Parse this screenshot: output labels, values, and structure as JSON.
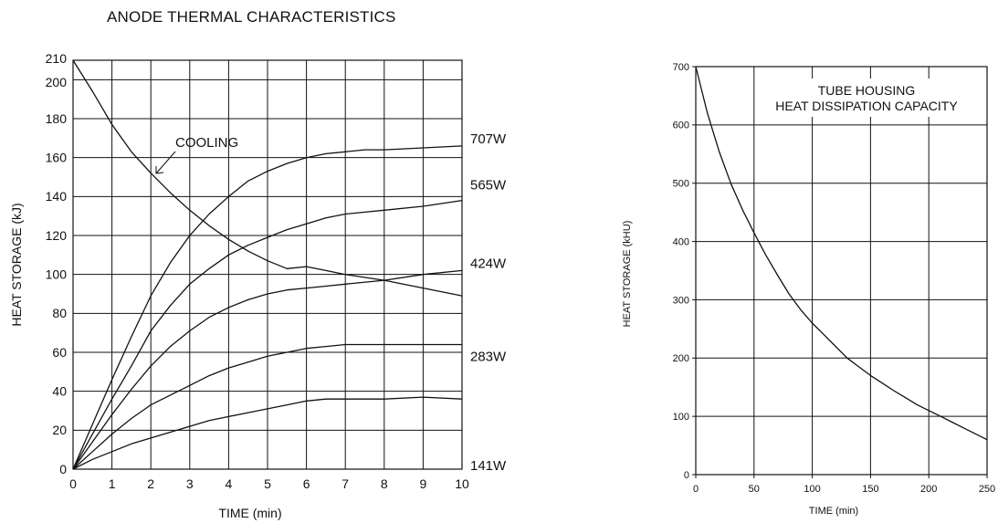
{
  "chart_data": [
    {
      "type": "line",
      "title": "ANODE THERMAL CHARACTERISTICS",
      "xlabel": "TIME (min)",
      "ylabel": "HEAT STORAGE (kJ)",
      "xlim": [
        0,
        10
      ],
      "ylim": [
        0,
        210
      ],
      "xticks": [
        "0",
        "1",
        "2",
        "3",
        "4",
        "5",
        "6",
        "7",
        "8",
        "9",
        "10"
      ],
      "yticks": [
        "0",
        "20",
        "40",
        "60",
        "80",
        "100",
        "120",
        "140",
        "160",
        "180",
        "200",
        "210"
      ],
      "grid": true,
      "annotation": "COOLING",
      "series": [
        {
          "name": "COOLING",
          "x": [
            0,
            0.5,
            1,
            1.5,
            2,
            2.5,
            3,
            3.5,
            4,
            4.5,
            5,
            5.5,
            6,
            6.5,
            7,
            8,
            9,
            10
          ],
          "y": [
            210,
            194,
            177,
            163,
            152,
            142,
            133,
            125,
            118,
            112,
            107,
            103,
            104,
            102,
            100,
            97,
            93,
            89
          ]
        },
        {
          "name": "707W",
          "x": [
            0,
            0.5,
            1,
            1.5,
            2,
            2.5,
            3,
            3.5,
            4,
            4.5,
            5,
            5.5,
            6,
            6.5,
            7,
            7.5,
            8,
            9,
            10
          ],
          "y": [
            0,
            23,
            46,
            68,
            89,
            106,
            120,
            131,
            140,
            148,
            153,
            157,
            160,
            162,
            163,
            164,
            164,
            165,
            166
          ]
        },
        {
          "name": "565W",
          "x": [
            0,
            0.5,
            1,
            1.5,
            2,
            2.5,
            3,
            3.5,
            4,
            4.5,
            5,
            5.5,
            6,
            6.5,
            7,
            7.5,
            8,
            9,
            10
          ],
          "y": [
            0,
            18,
            36,
            53,
            71,
            84,
            95,
            103,
            110,
            115,
            119,
            123,
            126,
            129,
            131,
            132,
            133,
            135,
            138
          ]
        },
        {
          "name": "424W",
          "x": [
            0,
            0.5,
            1,
            1.5,
            2,
            2.5,
            3,
            3.5,
            4,
            4.5,
            5,
            5.5,
            6,
            6.5,
            7,
            8,
            9,
            10
          ],
          "y": [
            0,
            14,
            28,
            41,
            53,
            63,
            71,
            78,
            83,
            87,
            90,
            92,
            93,
            94,
            95,
            97,
            100,
            102
          ]
        },
        {
          "name": "283W",
          "x": [
            0,
            0.5,
            1,
            1.5,
            2,
            2.5,
            3,
            3.5,
            4,
            4.5,
            5,
            5.5,
            6,
            6.5,
            7,
            8,
            9,
            10
          ],
          "y": [
            0,
            9,
            18,
            26,
            33,
            38,
            43,
            48,
            52,
            55,
            58,
            60,
            62,
            63,
            64,
            64,
            64,
            64
          ]
        },
        {
          "name": "141W",
          "x": [
            0,
            0.5,
            1,
            1.5,
            2,
            2.5,
            3,
            3.5,
            4,
            4.5,
            5,
            5.5,
            6,
            6.5,
            7,
            8,
            9,
            10
          ],
          "y": [
            0,
            5,
            9,
            13,
            16,
            19,
            22,
            25,
            27,
            29,
            31,
            33,
            35,
            36,
            36,
            36,
            37,
            36
          ]
        }
      ]
    },
    {
      "type": "line",
      "title": "TUBE HOUSING HEAT DISSIPATION CAPACITY",
      "title_lines": [
        "TUBE HOUSING",
        "HEAT DISSIPATION CAPACITY"
      ],
      "xlabel": "TIME (min)",
      "ylabel": "HEAT STORAGE (kHU)",
      "xlim": [
        0,
        250
      ],
      "ylim": [
        0,
        700
      ],
      "xticks": [
        "0",
        "50",
        "100",
        "150",
        "200",
        "250"
      ],
      "yticks": [
        "0",
        "100",
        "200",
        "300",
        "400",
        "500",
        "600",
        "700"
      ],
      "grid": true,
      "series": [
        {
          "name": "",
          "x": [
            0,
            10,
            20,
            30,
            40,
            50,
            60,
            70,
            80,
            90,
            100,
            110,
            120,
            130,
            140,
            150,
            160,
            170,
            180,
            190,
            200,
            210,
            220,
            230,
            240,
            250
          ],
          "y": [
            700,
            620,
            555,
            500,
            455,
            415,
            377,
            343,
            310,
            283,
            260,
            240,
            220,
            200,
            185,
            170,
            157,
            144,
            132,
            120,
            110,
            100,
            90,
            80,
            70,
            60
          ]
        }
      ]
    }
  ]
}
